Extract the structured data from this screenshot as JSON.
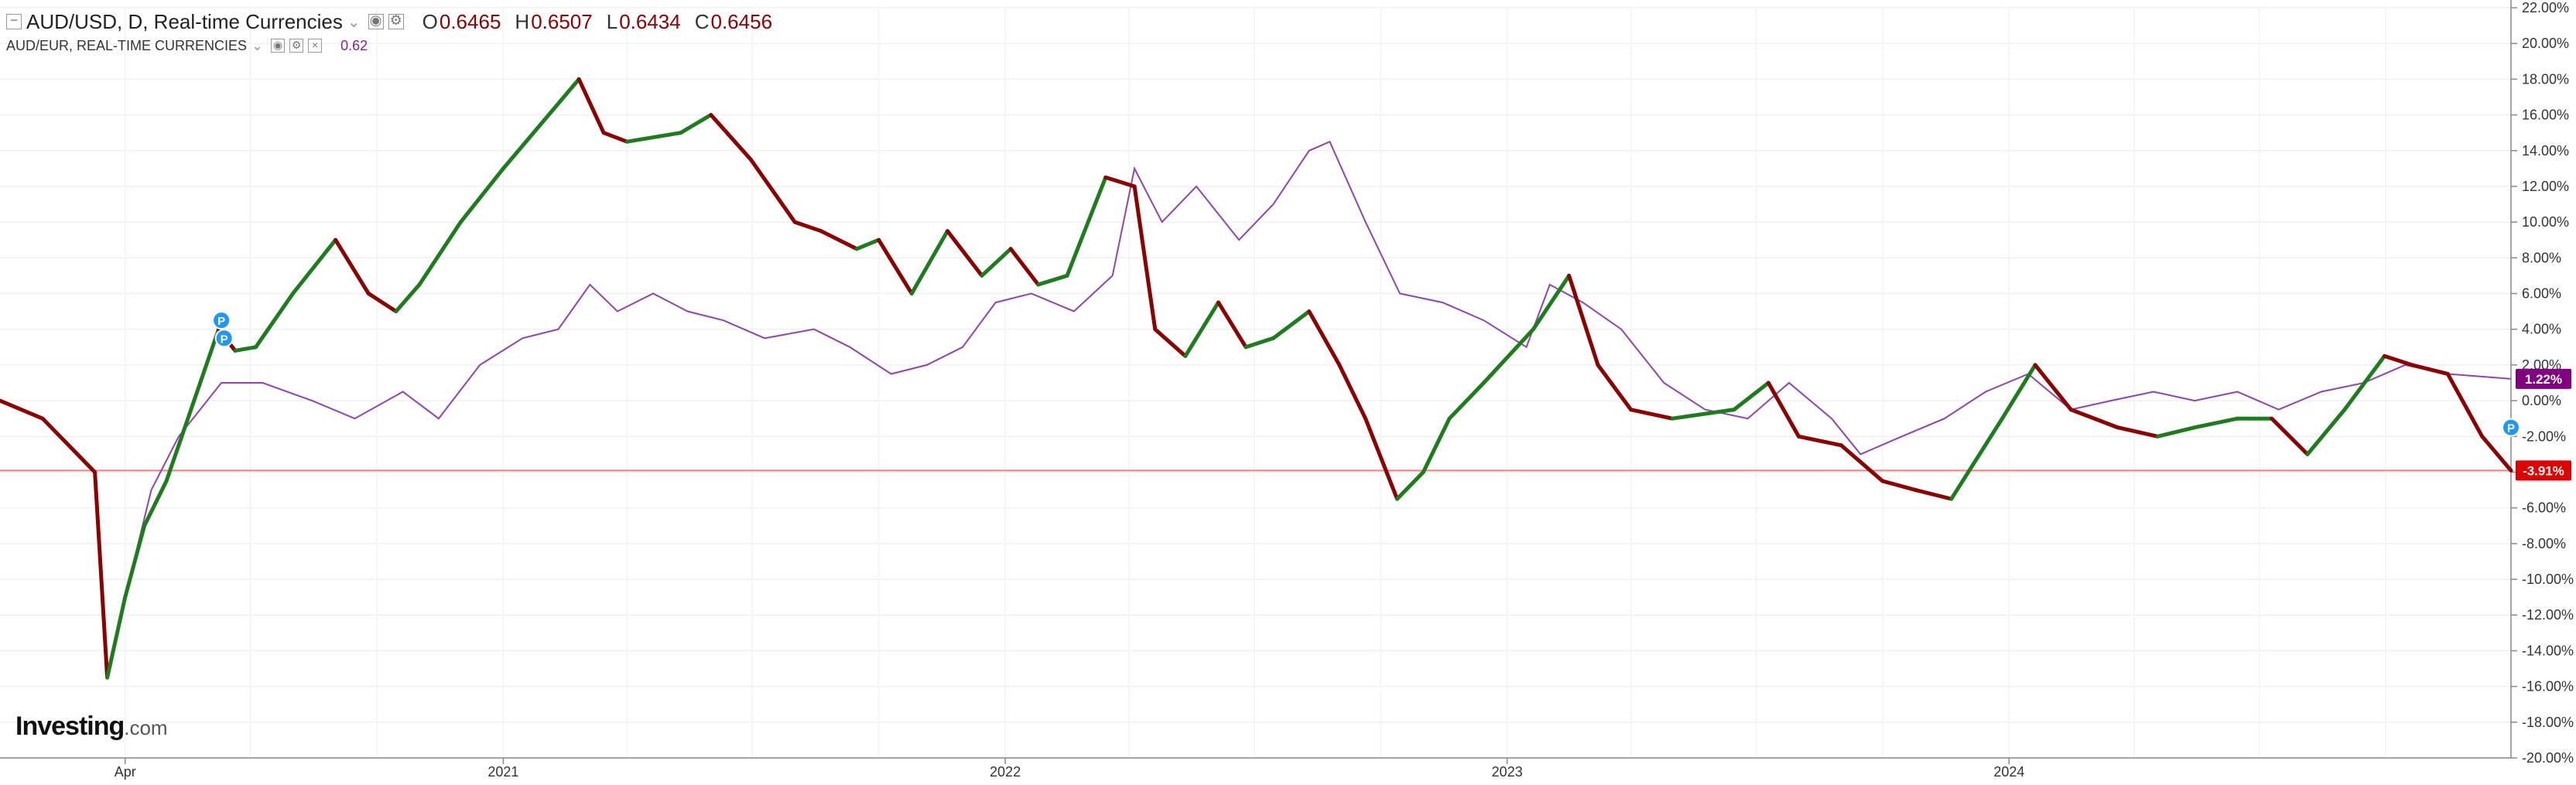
{
  "legend": {
    "main_symbol": "AUD/USD, D, Real-time Currencies",
    "ohlc": [
      {
        "key": "O",
        "value": "0.6465"
      },
      {
        "key": "H",
        "value": "0.6507"
      },
      {
        "key": "L",
        "value": "0.6434"
      },
      {
        "key": "C",
        "value": "0.6456"
      }
    ],
    "compare_symbol": "AUD/EUR, REAL-TIME CURRENCIES",
    "compare_value": "0.62"
  },
  "branding": {
    "logo_word": "Investing",
    "logo_suffix": ".com"
  },
  "colors": {
    "up": "#1e7b1e",
    "down": "#8b0000",
    "compare": "#8e44ad",
    "baseline": "#f08080",
    "badge_main": "#e00000",
    "badge_compare": "#800080",
    "marker": "#2196f3"
  },
  "chart_data": {
    "type": "line",
    "title": "",
    "xlabel": "",
    "ylabel": "",
    "x_ticks": [
      "Apr",
      "2021",
      "2022",
      "2023",
      "2024"
    ],
    "x_range": [
      "2020-01-01",
      "2024-12-31"
    ],
    "y_ticks": [
      "22.00%",
      "20.00%",
      "18.00%",
      "16.00%",
      "14.00%",
      "12.00%",
      "10.00%",
      "8.00%",
      "6.00%",
      "4.00%",
      "2.00%",
      "0.00%",
      "-2.00%",
      "-4.00%",
      "-6.00%",
      "-8.00%",
      "-10.00%",
      "-12.00%",
      "-14.00%",
      "-16.00%",
      "-18.00%",
      "-20.00%"
    ],
    "ylim": [
      -20,
      22
    ],
    "grid": true,
    "badges": {
      "compare": "1.22%",
      "main": "-3.91%"
    },
    "series": [
      {
        "name": "AUD/USD, D, Real-time Currencies",
        "style": "candles-approximated-as-line",
        "x": [
          "2020-01-01",
          "2020-02-01",
          "2020-03-10",
          "2020-03-19",
          "2020-04-01",
          "2020-04-15",
          "2020-05-01",
          "2020-06-08",
          "2020-06-20",
          "2020-07-05",
          "2020-08-01",
          "2020-09-01",
          "2020-09-25",
          "2020-10-15",
          "2020-11-01",
          "2020-12-01",
          "2021-01-01",
          "2021-02-25",
          "2021-03-15",
          "2021-04-01",
          "2021-05-10",
          "2021-06-01",
          "2021-06-30",
          "2021-08-01",
          "2021-08-20",
          "2021-09-15",
          "2021-10-01",
          "2021-10-25",
          "2021-11-20",
          "2021-12-15",
          "2022-01-05",
          "2022-01-25",
          "2022-02-15",
          "2022-03-15",
          "2022-04-05",
          "2022-04-20",
          "2022-05-12",
          "2022-06-05",
          "2022-06-25",
          "2022-07-15",
          "2022-08-10",
          "2022-09-01",
          "2022-09-20",
          "2022-10-13",
          "2022-11-01",
          "2022-11-20",
          "2022-12-15",
          "2023-01-20",
          "2023-02-15",
          "2023-03-08",
          "2023-04-01",
          "2023-05-01",
          "2023-06-15",
          "2023-07-10",
          "2023-08-01",
          "2023-09-01",
          "2023-10-01",
          "2023-10-25",
          "2023-11-20",
          "2023-12-27",
          "2024-01-20",
          "2024-02-15",
          "2024-03-20",
          "2024-04-18",
          "2024-05-15",
          "2024-06-15",
          "2024-07-10",
          "2024-08-05",
          "2024-09-01",
          "2024-09-30",
          "2024-10-20",
          "2024-11-15",
          "2024-12-10",
          "2024-12-31"
        ],
        "values": [
          0.0,
          -1.0,
          -4.0,
          -15.5,
          -11.0,
          -7.0,
          -4.5,
          4.0,
          2.8,
          3.0,
          6.0,
          9.0,
          6.0,
          5.0,
          6.5,
          10.0,
          13.0,
          18.0,
          15.0,
          14.5,
          15.0,
          16.0,
          13.5,
          10.0,
          9.5,
          8.5,
          9.0,
          6.0,
          9.5,
          7.0,
          8.5,
          6.5,
          7.0,
          12.5,
          12.0,
          4.0,
          2.5,
          5.5,
          3.0,
          3.5,
          5.0,
          2.0,
          -1.0,
          -5.5,
          -4.0,
          -1.0,
          1.0,
          4.0,
          7.0,
          2.0,
          -0.5,
          -1.0,
          -0.5,
          1.0,
          -2.0,
          -2.5,
          -4.5,
          -5.0,
          -5.5,
          -1.0,
          2.0,
          -0.5,
          -1.5,
          -2.0,
          -1.5,
          -1.0,
          -1.0,
          -3.0,
          -0.5,
          2.5,
          2.0,
          1.5,
          -2.0,
          -3.91
        ]
      },
      {
        "name": "AUD/EUR, REAL-TIME CURRENCIES",
        "x": [
          "2020-01-01",
          "2020-02-01",
          "2020-03-10",
          "2020-03-19",
          "2020-04-01",
          "2020-04-20",
          "2020-05-10",
          "2020-06-10",
          "2020-07-10",
          "2020-08-15",
          "2020-09-15",
          "2020-10-20",
          "2020-11-15",
          "2020-12-15",
          "2021-01-15",
          "2021-02-10",
          "2021-03-05",
          "2021-03-25",
          "2021-04-20",
          "2021-05-15",
          "2021-06-10",
          "2021-07-10",
          "2021-08-15",
          "2021-09-10",
          "2021-10-10",
          "2021-11-05",
          "2021-12-01",
          "2021-12-25",
          "2022-01-20",
          "2022-02-20",
          "2022-03-20",
          "2022-04-05",
          "2022-04-25",
          "2022-05-20",
          "2022-06-20",
          "2022-07-15",
          "2022-08-10",
          "2022-08-25",
          "2022-09-20",
          "2022-10-15",
          "2022-11-15",
          "2022-12-15",
          "2023-01-15",
          "2023-02-01",
          "2023-02-25",
          "2023-03-25",
          "2023-04-25",
          "2023-05-25",
          "2023-06-25",
          "2023-07-25",
          "2023-08-25",
          "2023-09-15",
          "2023-10-15",
          "2023-11-15",
          "2023-12-15",
          "2024-01-15",
          "2024-02-15",
          "2024-03-15",
          "2024-04-15",
          "2024-05-15",
          "2024-06-15",
          "2024-07-15",
          "2024-08-15",
          "2024-09-15",
          "2024-10-15",
          "2024-11-15",
          "2024-12-31"
        ],
        "values": [
          0.0,
          -1.0,
          -4.0,
          -15.5,
          -11.0,
          -5.0,
          -2.0,
          1.0,
          1.0,
          0.0,
          -1.0,
          0.5,
          -1.0,
          2.0,
          3.5,
          4.0,
          6.5,
          5.0,
          6.0,
          5.0,
          4.5,
          3.5,
          4.0,
          3.0,
          1.5,
          2.0,
          3.0,
          5.5,
          6.0,
          5.0,
          7.0,
          13.0,
          10.0,
          12.0,
          9.0,
          11.0,
          14.0,
          14.5,
          10.0,
          6.0,
          5.5,
          4.5,
          3.0,
          6.5,
          5.5,
          4.0,
          1.0,
          -0.5,
          -1.0,
          1.0,
          -1.0,
          -3.0,
          -2.0,
          -1.0,
          0.5,
          1.5,
          -0.5,
          0.0,
          0.5,
          0.0,
          0.5,
          -0.5,
          0.5,
          1.0,
          2.0,
          1.5,
          1.22
        ]
      }
    ],
    "markers": [
      {
        "label": "P",
        "x": "2020-06-10",
        "y": 4.5
      },
      {
        "label": "P",
        "x": "2020-06-12",
        "y": 3.5
      },
      {
        "label": "P",
        "x": "2024-12-31",
        "y": -1.5
      }
    ]
  }
}
